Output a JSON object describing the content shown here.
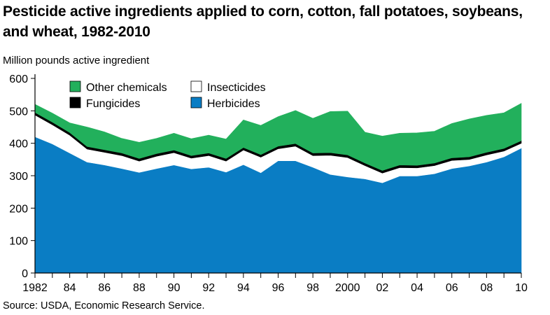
{
  "header": {
    "title_line1": "Pesticide active ingredients applied to corn, cotton, fall potatoes, soybeans,",
    "title_line2": "and wheat, 1982-2010"
  },
  "footer": {
    "source": "Source: USDA, Economic Research Service."
  },
  "colors": {
    "herbicides": "#0a7dc4",
    "insecticides": "#ffffff",
    "fungicides": "#000000",
    "other_chemicals": "#22b05c"
  },
  "chart_data": {
    "type": "area",
    "stacked": true,
    "ylabel": "Million pounds active ingredient",
    "xlabel": "",
    "ylim": [
      0,
      600
    ],
    "yticks": [
      0,
      100,
      200,
      300,
      400,
      500,
      600
    ],
    "xlim": [
      1982,
      2010
    ],
    "xtick_labels": [
      "1982",
      "84",
      "86",
      "88",
      "90",
      "92",
      "94",
      "96",
      "98",
      "2000",
      "02",
      "04",
      "06",
      "08",
      "10"
    ],
    "x": [
      1982,
      1983,
      1984,
      1985,
      1986,
      1987,
      1988,
      1989,
      1990,
      1991,
      1992,
      1993,
      1994,
      1995,
      1996,
      1997,
      1998,
      1999,
      2000,
      2001,
      2002,
      2003,
      2004,
      2005,
      2006,
      2007,
      2008,
      2009,
      2010
    ],
    "legend": [
      {
        "key": "other_chemicals",
        "label": "Other chemicals"
      },
      {
        "key": "insecticides",
        "label": "Insecticides"
      },
      {
        "key": "fungicides",
        "label": "Fungicides"
      },
      {
        "key": "herbicides",
        "label": "Herbicides"
      }
    ],
    "series": [
      {
        "name": "Herbicides",
        "key": "herbicides",
        "values": [
          420,
          398,
          370,
          342,
          333,
          322,
          310,
          322,
          333,
          321,
          326,
          311,
          334,
          309,
          346,
          346,
          326,
          304,
          296,
          290,
          278,
          299,
          299,
          306,
          322,
          330,
          342,
          358,
          385
        ]
      },
      {
        "name": "Insecticides",
        "key": "insecticides",
        "values": [
          67,
          59,
          55,
          40,
          39,
          40,
          35,
          38,
          38,
          33,
          36,
          34,
          45,
          48,
          37,
          45,
          36,
          59,
          60,
          41,
          30,
          26,
          25,
          25,
          25,
          20,
          22,
          18,
          15
        ]
      },
      {
        "name": "Fungicides",
        "key": "fungicides",
        "values": [
          8,
          8,
          8,
          8,
          8,
          8,
          8,
          8,
          8,
          8,
          8,
          8,
          8,
          8,
          8,
          8,
          8,
          8,
          8,
          8,
          8,
          8,
          8,
          8,
          8,
          8,
          8,
          8,
          8
        ]
      },
      {
        "name": "Other chemicals",
        "key": "other_chemicals",
        "values": [
          25,
          28,
          30,
          60,
          55,
          45,
          50,
          47,
          52,
          52,
          55,
          60,
          85,
          90,
          91,
          102,
          107,
          127,
          135,
          95,
          106,
          98,
          100,
          98,
          106,
          117,
          114,
          110,
          115
        ]
      }
    ]
  }
}
